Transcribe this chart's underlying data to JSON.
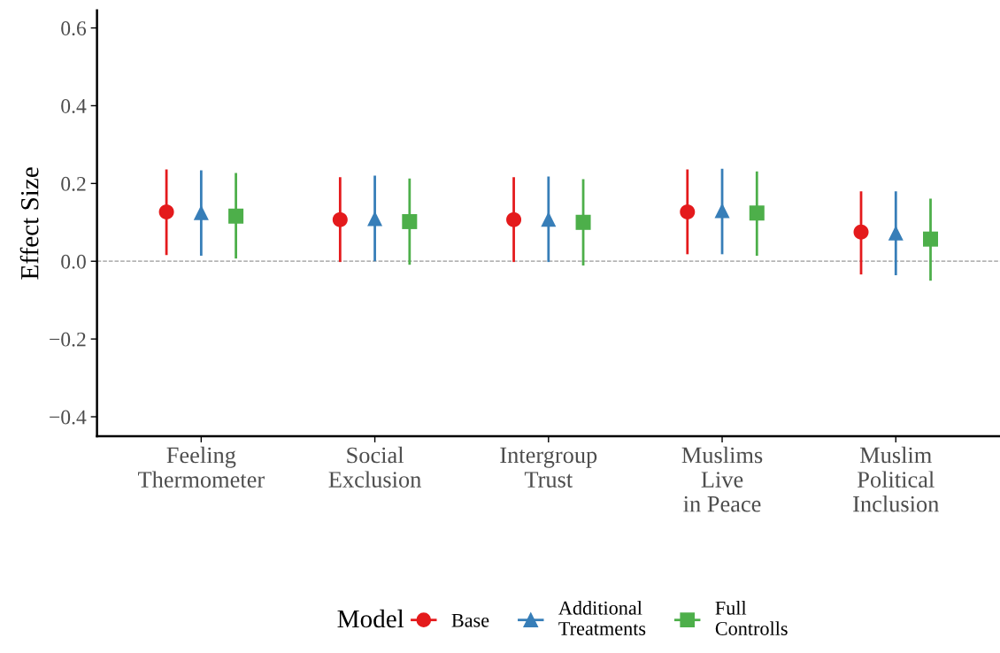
{
  "chart_data": {
    "type": "scatter",
    "ylabel": "Effect Size",
    "legend_title": "Model",
    "legend": "bottom",
    "grid": false,
    "categories": [
      "Feeling\nThermometer",
      "Social\nExclusion",
      "Intergroup\nTrust",
      "Muslims\nLive\nin Peace",
      "Muslim\nPolitical\nInclusion"
    ],
    "series": [
      {
        "name": "Base",
        "color": "#e41a1c",
        "marker": "circle",
        "values": [
          0.127,
          0.107,
          0.107,
          0.127,
          0.075
        ],
        "errors": [
          [
            0.016,
            0.236
          ],
          [
            -0.002,
            0.216
          ],
          [
            -0.002,
            0.216
          ],
          [
            0.018,
            0.236
          ],
          [
            -0.034,
            0.18
          ]
        ]
      },
      {
        "name": "Additional\nTreatments",
        "color": "#377eb8",
        "marker": "triangle",
        "values": [
          0.125,
          0.11,
          0.108,
          0.13,
          0.073
        ],
        "errors": [
          [
            0.014,
            0.234
          ],
          [
            0.0,
            0.22
          ],
          [
            -0.002,
            0.218
          ],
          [
            0.018,
            0.238
          ],
          [
            -0.036,
            0.18
          ]
        ]
      },
      {
        "name": "Full\nControlls",
        "color": "#4daf4a",
        "marker": "square",
        "values": [
          0.116,
          0.102,
          0.1,
          0.124,
          0.057
        ],
        "errors": [
          [
            0.007,
            0.227
          ],
          [
            -0.009,
            0.213
          ],
          [
            -0.011,
            0.211
          ],
          [
            0.014,
            0.231
          ],
          [
            -0.05,
            0.161
          ]
        ]
      }
    ],
    "ylim": [
      -0.45,
      0.645
    ],
    "yticks": [
      {
        "value": -0.4,
        "label": "−0.4"
      },
      {
        "value": -0.2,
        "label": "−0.2"
      },
      {
        "value": 0.0,
        "label": "0.0"
      },
      {
        "value": 0.2,
        "label": "0.2"
      },
      {
        "value": 0.4,
        "label": "0.4"
      },
      {
        "value": 0.6,
        "label": "0.6"
      }
    ],
    "ref_lines": [
      {
        "axis": "y",
        "value": 0,
        "color": "#999999",
        "line_style": "dashed"
      }
    ]
  }
}
